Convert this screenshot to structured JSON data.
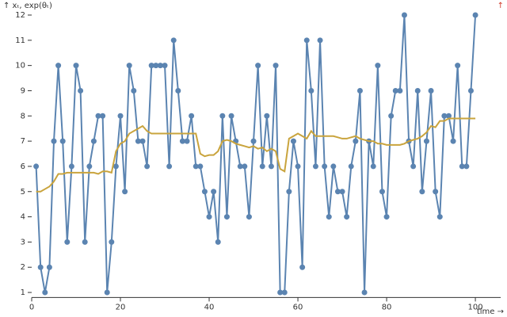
{
  "chart_data": {
    "type": "line",
    "y_label": "↑ xₜ, exp(θₜ)",
    "x_label": "time →",
    "annotation": "↑",
    "x": [
      1,
      2,
      3,
      4,
      5,
      6,
      7,
      8,
      9,
      10,
      11,
      12,
      13,
      14,
      15,
      16,
      17,
      18,
      19,
      20,
      21,
      22,
      23,
      24,
      25,
      26,
      27,
      28,
      29,
      30,
      31,
      32,
      33,
      34,
      35,
      36,
      37,
      38,
      39,
      40,
      41,
      42,
      43,
      44,
      45,
      46,
      47,
      48,
      49,
      50,
      51,
      52,
      53,
      54,
      55,
      56,
      57,
      58,
      59,
      60,
      61,
      62,
      63,
      64,
      65,
      66,
      67,
      68,
      69,
      70,
      71,
      72,
      73,
      74,
      75,
      76,
      77,
      78,
      79,
      80,
      81,
      82,
      83,
      84,
      85,
      86,
      87,
      88,
      89,
      90,
      91,
      92,
      93,
      94,
      95,
      96,
      97,
      98,
      99,
      100
    ],
    "series": [
      {
        "color": "#5b84b1",
        "markers": true,
        "values": [
          6,
          2,
          1,
          2,
          7,
          10,
          7,
          3,
          6,
          10,
          9,
          3,
          6,
          7,
          8,
          8,
          1,
          3,
          6,
          8,
          5,
          10,
          9,
          7,
          7,
          6,
          10,
          10,
          10,
          10,
          6,
          11,
          9,
          7,
          7,
          8,
          6,
          6,
          5,
          4,
          5,
          3,
          8,
          4,
          8,
          7,
          6,
          6,
          4,
          7,
          10,
          6,
          8,
          6,
          10,
          1,
          1,
          5,
          7,
          6,
          2,
          11,
          9,
          6,
          11,
          6,
          4,
          6,
          5,
          5,
          4,
          6,
          7,
          9,
          1,
          7,
          6,
          10,
          5,
          4,
          8,
          9,
          9,
          12,
          7,
          6,
          9,
          5,
          7,
          9,
          5,
          4,
          8,
          8,
          7,
          10,
          6,
          6,
          9,
          12
        ]
      },
      {
        "color": "#c9a43d",
        "markers": false,
        "values": [
          5.0,
          5.0,
          5.1,
          5.2,
          5.4,
          5.7,
          5.7,
          5.75,
          5.75,
          5.75,
          5.75,
          5.75,
          5.75,
          5.75,
          5.7,
          5.8,
          5.8,
          5.75,
          6.6,
          6.9,
          7.0,
          7.3,
          7.4,
          7.5,
          7.6,
          7.4,
          7.3,
          7.3,
          7.3,
          7.3,
          7.3,
          7.3,
          7.3,
          7.3,
          7.3,
          7.3,
          7.3,
          6.5,
          6.4,
          6.45,
          6.45,
          6.6,
          7.0,
          7.05,
          7.0,
          6.9,
          6.85,
          6.8,
          6.75,
          6.8,
          6.7,
          6.75,
          6.6,
          6.7,
          6.6,
          5.9,
          5.8,
          7.1,
          7.2,
          7.3,
          7.2,
          7.1,
          7.4,
          7.2,
          7.2,
          7.2,
          7.2,
          7.2,
          7.15,
          7.1,
          7.1,
          7.15,
          7.2,
          7.1,
          7.05,
          7.0,
          7.0,
          6.9,
          6.9,
          6.85,
          6.85,
          6.85,
          6.85,
          6.9,
          7.0,
          7.05,
          7.1,
          7.2,
          7.35,
          7.6,
          7.55,
          7.8,
          7.8,
          7.9,
          7.9,
          7.9,
          7.9,
          7.9,
          7.9,
          7.9
        ]
      }
    ],
    "xlim": [
      0,
      105.7
    ],
    "ylim": [
      0.8,
      12
    ],
    "xticks": [
      0,
      20,
      40,
      60,
      80,
      100
    ],
    "yticks": [
      1,
      2,
      3,
      4,
      5,
      6,
      7,
      8,
      9,
      10,
      11,
      12
    ]
  }
}
